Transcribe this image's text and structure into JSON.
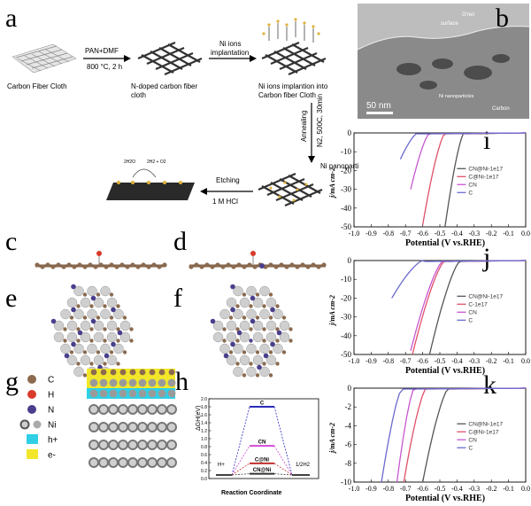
{
  "panels": {
    "a": {
      "label": "a",
      "carbon_cloth": "Carbon Fiber Cloth",
      "step1_top": "PAN+DMF",
      "step1_bottom": "800 °C, 2 h",
      "n_doped_line1": "N-doped carbon fiber",
      "n_doped_line2": "cloth",
      "step2": "Ni ions",
      "step2b": "implantation",
      "implanted_line1": "Ni ions implantion into",
      "implanted_line2": "Carbon fiber Cloth",
      "anneal_label": "Annealing",
      "anneal_cond": "N2, 500C, 30min",
      "ni_np": "Ni nanoparti",
      "etching": "Etching",
      "hcl": "1 M HCl",
      "reaction_left": "2H2O",
      "reaction_right": "2H2 + O2"
    },
    "b": {
      "label": "b",
      "surface": "surface",
      "gnet": "G'net",
      "scale": "50 nm",
      "ni_np": "Ni nanoparticles",
      "carbon": "Carbon"
    },
    "c": {
      "label": "c"
    },
    "d": {
      "label": "d"
    },
    "e": {
      "label": "e"
    },
    "f": {
      "label": "f"
    },
    "g": {
      "label": "g",
      "legend": [
        {
          "symbol": "C",
          "color": "#8b6a4f"
        },
        {
          "symbol": "H",
          "color": "#d93b2b"
        },
        {
          "symbol": "N",
          "color": "#4a3f8c"
        },
        {
          "symbol": "Ni",
          "color": "#9a9a9a"
        },
        {
          "symbol": "h+",
          "color": "#2fd0e6"
        },
        {
          "symbol": "e-",
          "color": "#f2e62a"
        }
      ]
    },
    "h": {
      "label": "h",
      "ylabel": "ΔGH(eV)",
      "xlabel": "Reaction Coordinate",
      "yticks": [
        "2.0",
        "1.8",
        "1.6",
        "1.4",
        "1.2",
        "1.0",
        "0.8",
        "0.6",
        "0.4",
        "0.2",
        "0.0"
      ],
      "start": "H+",
      "end": "1/2H2",
      "levels": [
        {
          "name": "C",
          "value": 1.8,
          "color": "#2b2bbd"
        },
        {
          "name": "CN",
          "value": 0.82,
          "color": "#d14bd6"
        },
        {
          "name": "C@Ni",
          "value": 0.38,
          "color": "#c23030"
        },
        {
          "name": "CN@Ni",
          "value": 0.12,
          "color": "#333333"
        }
      ]
    }
  },
  "chart_data": [
    {
      "type": "line",
      "panel": "i",
      "xlabel": "Potential (V vs.RHE)",
      "ylabel": "j/mA cm-2",
      "xlim": [
        -1.0,
        0.0
      ],
      "ylim": [
        -50,
        0
      ],
      "xticks": [
        "-1.0",
        "-0.9",
        "-0.8",
        "-0.7",
        "-0.6",
        "-0.5",
        "-0.4",
        "-0.3",
        "-0.2",
        "-0.1",
        "0.0"
      ],
      "yticks": [
        "0",
        "-10",
        "-20",
        "-30",
        "-40",
        "-50"
      ],
      "legend_position": "right",
      "series": [
        {
          "name": "CN@Ni-1e17",
          "color": "#555555",
          "onset": -0.36,
          "end_x": -0.47,
          "end_y": -50
        },
        {
          "name": "C@Ni-1e17",
          "color": "#e0506a",
          "onset": -0.47,
          "end_x": -0.6,
          "end_y": -49
        },
        {
          "name": "CN",
          "color": "#c857d0",
          "onset": -0.56,
          "end_x": -0.67,
          "end_y": -30
        },
        {
          "name": "C",
          "color": "#6a6acf",
          "onset": -0.63,
          "end_x": -0.73,
          "end_y": -14
        }
      ]
    },
    {
      "type": "line",
      "panel": "j",
      "xlabel": "Potential (V vs.RHE)",
      "ylabel": "j/mA cm-2",
      "xlim": [
        -1.0,
        0.0
      ],
      "ylim": [
        -50,
        0
      ],
      "xticks": [
        "-1.0",
        "-0.9",
        "-0.8",
        "-0.7",
        "-0.6",
        "-0.5",
        "-0.4",
        "-0.3",
        "-0.2",
        "-0.1",
        "0.0"
      ],
      "yticks": [
        "0",
        "-10",
        "-20",
        "-30",
        "-40",
        "-50"
      ],
      "legend_position": "right",
      "series": [
        {
          "name": "CN@Ni-1e17",
          "color": "#555555",
          "onset": -0.38,
          "end_x": -0.56,
          "end_y": -50
        },
        {
          "name": "C-1e17",
          "color": "#e0506a",
          "onset": -0.47,
          "end_x": -0.66,
          "end_y": -50
        },
        {
          "name": "CN",
          "color": "#c857d0",
          "onset": -0.48,
          "end_x": -0.67,
          "end_y": -48
        },
        {
          "name": "C",
          "color": "#6a6acf",
          "onset": -0.6,
          "end_x": -0.78,
          "end_y": -20
        }
      ]
    },
    {
      "type": "line",
      "panel": "k",
      "xlabel": "Potential (V vs.RHE)",
      "ylabel": "j/mA cm-2",
      "xlim": [
        -1.0,
        0.0
      ],
      "ylim": [
        -10,
        0
      ],
      "xticks": [
        "-1.0",
        "-0.9",
        "-0.8",
        "-0.7",
        "-0.6",
        "-0.5",
        "-0.4",
        "-0.3",
        "-0.2",
        "-0.1",
        "0.0"
      ],
      "yticks": [
        "0",
        "-2",
        "-4",
        "-6",
        "-8",
        "-10"
      ],
      "legend_position": "right",
      "series": [
        {
          "name": "CN@Ni-1e17",
          "color": "#555555",
          "onset": -0.45,
          "end_x": -0.6,
          "end_y": -10
        },
        {
          "name": "C@Ni-1e17",
          "color": "#e0506a",
          "onset": -0.58,
          "end_x": -0.71,
          "end_y": -10
        },
        {
          "name": "CN",
          "color": "#c857d0",
          "onset": -0.65,
          "end_x": -0.75,
          "end_y": -10
        },
        {
          "name": "C",
          "color": "#6a6acf",
          "onset": -0.72,
          "end_x": -0.84,
          "end_y": -10
        }
      ]
    }
  ]
}
